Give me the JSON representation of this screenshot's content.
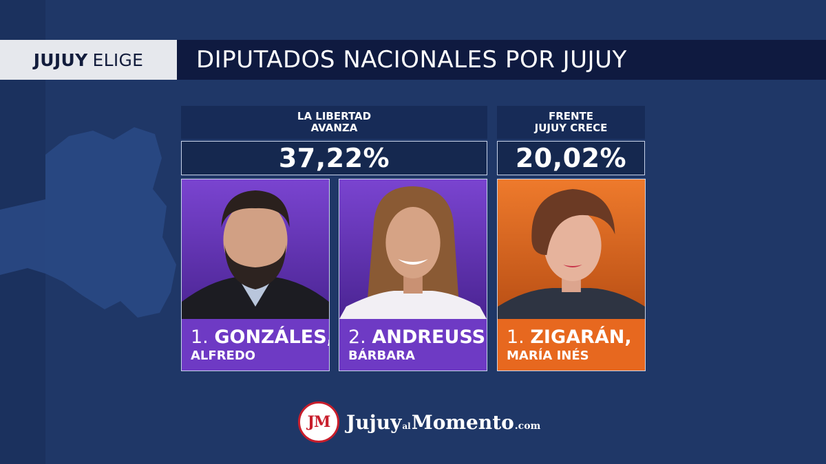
{
  "header": {
    "tag_strong": "JUJUY",
    "tag_light": "ELIGE",
    "title": "DIPUTADOS NACIONALES POR JUJUY"
  },
  "parties": [
    {
      "name_line1": "LA LIBERTAD",
      "name_line2": "AVANZA",
      "percentage": "37,22%",
      "color": "#6e3ac4"
    },
    {
      "name_line1": "FRENTE",
      "name_line2": "JUJUY CRECE",
      "percentage": "20,02%",
      "color": "#e7681f"
    }
  ],
  "candidates": [
    {
      "number": "1.",
      "surname": "GONZÁLES,",
      "first_name": "ALFREDO",
      "party_index": 0
    },
    {
      "number": "2.",
      "surname": "ANDREUSSI,",
      "first_name": "BÁRBARA",
      "party_index": 0
    },
    {
      "number": "1.",
      "surname": "ZIGARÁN,",
      "first_name": "MARÍA INÉS",
      "party_index": 1
    }
  ],
  "footer": {
    "badge": "JM",
    "brand_part1": "Jujuy",
    "brand_part2": "al",
    "brand_part3": "Momento",
    "brand_part4": ".com"
  }
}
